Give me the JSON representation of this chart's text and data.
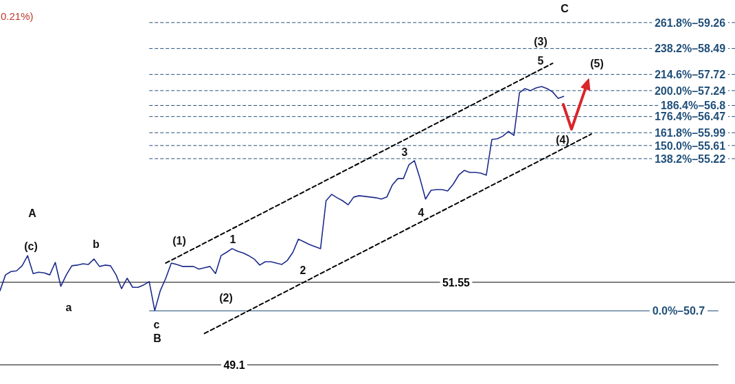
{
  "chart_data": {
    "type": "line",
    "categories": [
      null,
      null,
      null,
      null,
      null,
      null,
      null,
      null,
      null,
      null,
      null,
      null,
      null,
      null,
      null,
      null,
      null,
      null,
      null,
      null,
      null,
      null,
      null,
      null,
      null,
      null,
      null,
      null,
      null,
      null,
      null,
      null,
      null,
      null,
      null,
      null,
      null,
      null,
      null,
      null,
      null,
      null,
      null,
      null,
      null,
      null,
      null,
      null,
      null,
      null,
      null,
      null,
      null,
      null,
      null,
      null,
      null,
      null,
      null,
      null,
      null,
      null,
      null,
      null,
      null,
      null,
      null,
      null,
      null,
      null,
      null,
      null,
      null,
      null,
      null,
      null,
      null,
      null,
      null,
      null,
      null,
      null,
      null,
      null,
      null,
      null,
      null,
      null,
      null,
      null,
      null,
      null,
      null,
      null,
      null,
      null,
      null,
      null,
      null,
      null,
      null,
      null,
      null,
      null,
      null,
      null,
      null,
      null,
      null,
      null,
      null,
      null,
      null,
      null,
      null,
      null,
      null,
      null,
      null,
      null,
      null,
      null,
      null,
      null,
      null,
      null,
      null,
      null,
      null,
      null,
      null,
      null,
      null,
      null
    ],
    "ylim": [
      48.53,
      59.93
    ],
    "tick_labels": false,
    "series": [
      {
        "color": "#1b2a8a",
        "values": [
          51.3,
          51.77,
          51.87,
          51.89,
          52.04,
          52.34,
          51.81,
          51.85,
          51.83,
          51.77,
          52.14,
          51.43,
          51.77,
          52.04,
          52.06,
          52.1,
          52.08,
          52.24,
          52.02,
          52.06,
          52.04,
          51.77,
          51.36,
          51.67,
          51.4,
          51.4,
          51.47,
          51.57,
          50.71,
          51.3,
          51.67,
          52.12,
          52.08,
          52.02,
          52.02,
          52.02,
          51.94,
          51.98,
          52.02,
          51.81,
          52.34,
          52.44,
          52.55,
          52.47,
          52.42,
          52.34,
          52.24,
          52.06,
          52.16,
          52.16,
          52.12,
          52.08,
          52.2,
          52.44,
          52.83,
          52.75,
          52.67,
          52.61,
          52.55,
          53.97,
          54.16,
          54.06,
          53.97,
          53.85,
          54.08,
          54.12,
          54.1,
          54.08,
          54.06,
          54.02,
          54.08,
          54.44,
          54.63,
          54.63,
          55.04,
          55.16,
          54.63,
          54.02,
          54.28,
          54.3,
          54.3,
          54.26,
          54.46,
          54.73,
          54.87,
          54.81,
          54.81,
          54.79,
          54.73,
          55.79,
          55.81,
          55.89,
          56.03,
          55.91,
          57.18,
          57.3,
          57.24,
          57.32,
          57.36,
          57.3,
          57.2,
          57.01,
          57.07,
          null,
          null,
          null,
          null,
          null,
          null,
          null,
          null,
          null,
          null,
          null,
          null,
          null,
          null,
          null,
          null,
          null,
          null,
          null,
          null,
          null,
          null,
          null,
          null,
          null,
          null,
          null,
          null,
          null,
          null,
          null
        ]
      },
      {
        "type": "line",
        "color": "#000000",
        "line_style": "dashed",
        "values": [
          null,
          null,
          null,
          null,
          null,
          null,
          null,
          null,
          null,
          null,
          null,
          null,
          null,
          null,
          null,
          null,
          null,
          null,
          null,
          null,
          null,
          null,
          null,
          null,
          null,
          null,
          null,
          null,
          null,
          null,
          52.12,
          null,
          null,
          null,
          null,
          null,
          null,
          null,
          null,
          null,
          null,
          null,
          null,
          null,
          null,
          null,
          null,
          null,
          null,
          null,
          null,
          null,
          null,
          null,
          null,
          null,
          null,
          null,
          null,
          null,
          null,
          null,
          null,
          null,
          null,
          null,
          null,
          null,
          null,
          null,
          null,
          null,
          null,
          null,
          null,
          null,
          null,
          null,
          null,
          null,
          null,
          null,
          null,
          null,
          null,
          null,
          null,
          null,
          null,
          null,
          null,
          null,
          null,
          null,
          null,
          null,
          null,
          null,
          null,
          null,
          58.05,
          null,
          null,
          null,
          null,
          null,
          null,
          null,
          null,
          null,
          null,
          null,
          null,
          null,
          null,
          null,
          null,
          null,
          null,
          null,
          null,
          null,
          null,
          null,
          null,
          null,
          null,
          null,
          null,
          null,
          null,
          null,
          null,
          null
        ]
      },
      {
        "type": "line",
        "color": "#000000",
        "line_style": "dashed",
        "values": [
          null,
          null,
          null,
          null,
          null,
          null,
          null,
          null,
          null,
          null,
          null,
          null,
          null,
          null,
          null,
          null,
          null,
          null,
          null,
          null,
          null,
          null,
          null,
          null,
          null,
          null,
          null,
          null,
          null,
          null,
          null,
          null,
          null,
          null,
          null,
          null,
          null,
          50.03,
          null,
          null,
          null,
          null,
          null,
          null,
          null,
          null,
          null,
          null,
          null,
          null,
          null,
          null,
          null,
          null,
          null,
          null,
          null,
          null,
          null,
          null,
          null,
          null,
          null,
          null,
          null,
          null,
          null,
          null,
          null,
          null,
          null,
          null,
          null,
          null,
          null,
          null,
          null,
          null,
          null,
          null,
          null,
          null,
          null,
          null,
          null,
          null,
          null,
          null,
          null,
          null,
          null,
          null,
          null,
          null,
          null,
          null,
          null,
          null,
          null,
          null,
          null,
          null,
          null,
          null,
          null,
          null,
          null,
          55.95,
          null,
          null,
          null,
          null,
          null,
          null,
          null,
          null,
          null,
          null,
          null,
          null,
          null,
          null,
          null,
          null,
          null,
          null,
          null,
          null,
          null,
          null,
          null,
          null,
          null,
          null
        ]
      }
    ],
    "ref_lines": [
      {
        "axis": "y",
        "value": 59.26,
        "label": "261.8%–59.26",
        "color": "#1f4e79",
        "line_style": "dashed"
      },
      {
        "axis": "y",
        "value": 58.49,
        "label": "238.2%–58.49",
        "color": "#1f4e79",
        "line_style": "dashed"
      },
      {
        "axis": "y",
        "value": 57.72,
        "label": "214.6%–57.72",
        "color": "#1f4e79",
        "line_style": "dashed"
      },
      {
        "axis": "y",
        "value": 57.24,
        "label": "200.0%–57.24",
        "color": "#1f4e79",
        "line_style": "dashed"
      },
      {
        "axis": "y",
        "value": 56.8,
        "label": "186.4%–56.8",
        "color": "#1f4e79",
        "line_style": "dashed"
      },
      {
        "axis": "y",
        "value": 56.47,
        "label": "176.4%–56.47",
        "color": "#1f4e79",
        "line_style": "dashed"
      },
      {
        "axis": "y",
        "value": 55.99,
        "label": "161.8%–55.99",
        "color": "#1f4e79",
        "line_style": "dashed"
      },
      {
        "axis": "y",
        "value": 55.61,
        "label": "150.0%–55.61",
        "color": "#1f4e79",
        "line_style": "dashed"
      },
      {
        "axis": "y",
        "value": 55.22,
        "label": "138.2%–55.22",
        "color": "#1f4e79",
        "line_style": "dashed"
      },
      {
        "axis": "y",
        "value": 51.55,
        "label": "51.55",
        "color": "#000000",
        "line_style": "solid"
      },
      {
        "axis": "y",
        "value": 50.7,
        "label": "0.0%–50.7",
        "color": "#1f4e79",
        "line_style": "solid"
      },
      {
        "axis": "y",
        "value": 49.1,
        "label": "49.1",
        "color": "#000000",
        "line_style": "solid"
      }
    ],
    "annotations": [
      "0.21%)",
      "C",
      "(3)",
      "5",
      "(5)",
      "(4)",
      "3",
      "4",
      "A",
      "(c)",
      "b",
      "(1)",
      "1",
      "2",
      "(2)",
      "a",
      "c",
      "B"
    ]
  }
}
